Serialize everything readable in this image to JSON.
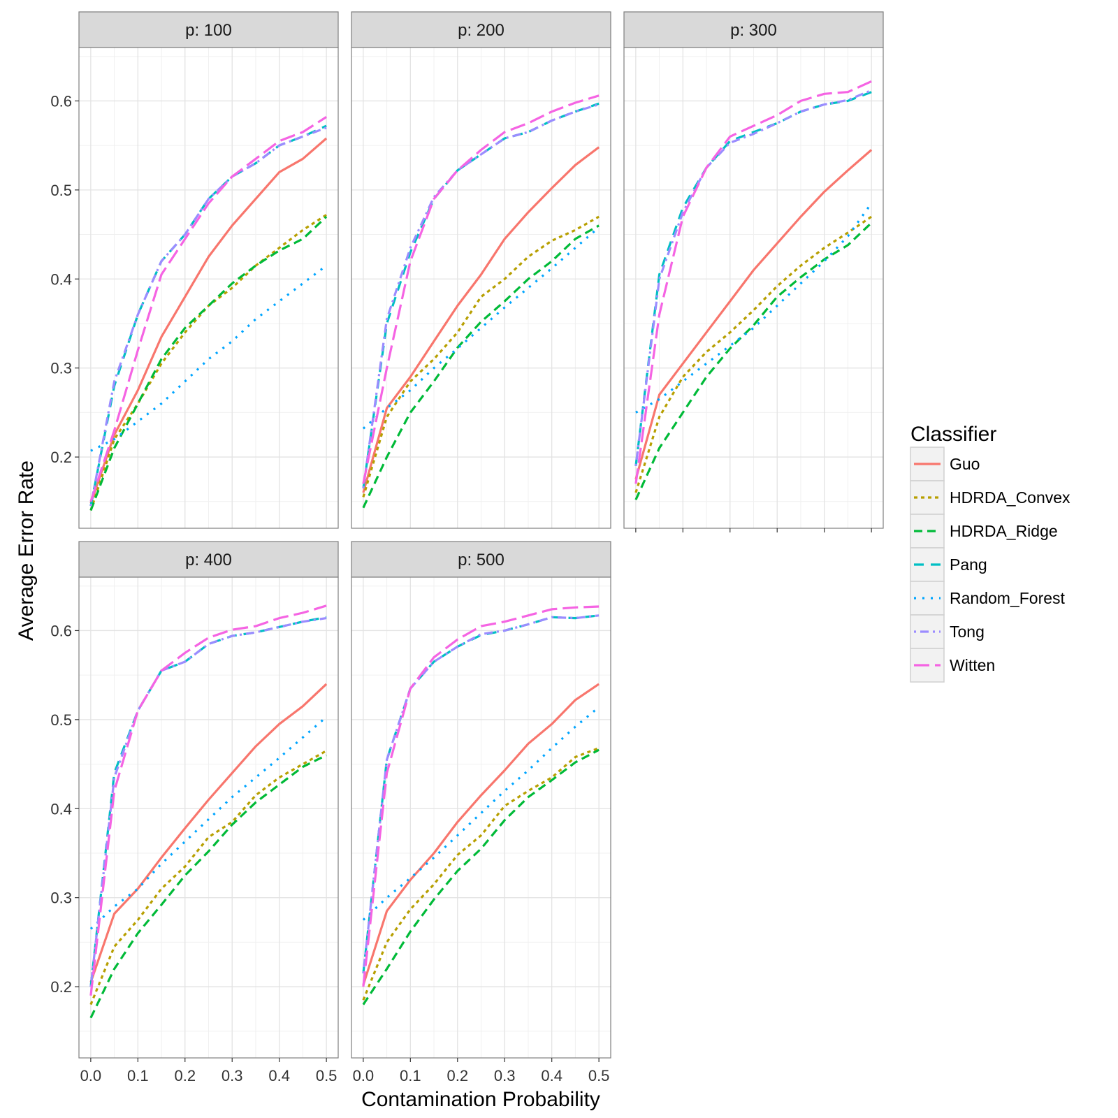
{
  "chart_data": {
    "type": "line",
    "xlabel": "Contamination Probability",
    "ylabel": "Average Error Rate",
    "xlim": [
      -0.025,
      0.525
    ],
    "ylim": [
      0.12,
      0.66
    ],
    "x_ticks": [
      "0.0",
      "0.1",
      "0.2",
      "0.3",
      "0.4",
      "0.5"
    ],
    "x_tick_values": [
      0,
      0.1,
      0.2,
      0.3,
      0.4,
      0.5
    ],
    "y_ticks": [
      "0.2",
      "0.3",
      "0.4",
      "0.5",
      "0.6"
    ],
    "y_tick_values": [
      0.2,
      0.3,
      0.4,
      0.5,
      0.6
    ],
    "grid": true,
    "legend": {
      "title": "Classifier",
      "position": "right",
      "entries": [
        {
          "name": "Guo",
          "color": "#F8766D",
          "dash": "solid"
        },
        {
          "name": "HDRDA_Convex",
          "color": "#B79F00",
          "dash": "dotted-short"
        },
        {
          "name": "HDRDA_Ridge",
          "color": "#00BA38",
          "dash": "dashed"
        },
        {
          "name": "Pang",
          "color": "#00BFC4",
          "dash": "dashed-long"
        },
        {
          "name": "Random_Forest",
          "color": "#00A5FF",
          "dash": "dotted"
        },
        {
          "name": "Tong",
          "color": "#9B8CFF",
          "dash": "dotdash"
        },
        {
          "name": "Witten",
          "color": "#F564E3",
          "dash": "longdash"
        }
      ]
    },
    "x": [
      0,
      0.05,
      0.1,
      0.15,
      0.2,
      0.25,
      0.3,
      0.35,
      0.4,
      0.45,
      0.5
    ],
    "panels": [
      {
        "title": "p: 100",
        "series": [
          {
            "name": "Guo",
            "values": [
              0.148,
              0.225,
              0.275,
              0.335,
              0.38,
              0.425,
              0.46,
              0.49,
              0.52,
              0.535,
              0.558
            ]
          },
          {
            "name": "HDRDA_Convex",
            "values": [
              0.14,
              0.22,
              0.26,
              0.305,
              0.34,
              0.37,
              0.39,
              0.415,
              0.435,
              0.455,
              0.472
            ]
          },
          {
            "name": "HDRDA_Ridge",
            "values": [
              0.14,
              0.21,
              0.26,
              0.31,
              0.345,
              0.37,
              0.395,
              0.415,
              0.432,
              0.445,
              0.47
            ]
          },
          {
            "name": "Pang",
            "values": [
              0.145,
              0.28,
              0.36,
              0.42,
              0.45,
              0.49,
              0.515,
              0.53,
              0.55,
              0.56,
              0.572
            ]
          },
          {
            "name": "Random_Forest",
            "values": [
              0.207,
              0.22,
              0.24,
              0.26,
              0.285,
              0.31,
              0.33,
              0.355,
              0.375,
              0.395,
              0.415
            ]
          },
          {
            "name": "Tong",
            "values": [
              0.145,
              0.285,
              0.36,
              0.42,
              0.45,
              0.49,
              0.515,
              0.53,
              0.55,
              0.56,
              0.57
            ]
          },
          {
            "name": "Witten",
            "values": [
              0.15,
              0.23,
              0.32,
              0.405,
              0.445,
              0.485,
              0.515,
              0.535,
              0.555,
              0.565,
              0.582
            ]
          }
        ]
      },
      {
        "title": "p: 200",
        "series": [
          {
            "name": "Guo",
            "values": [
              0.16,
              0.255,
              0.29,
              0.33,
              0.37,
              0.405,
              0.445,
              0.475,
              0.502,
              0.528,
              0.548
            ]
          },
          {
            "name": "HDRDA_Convex",
            "values": [
              0.155,
              0.245,
              0.285,
              0.31,
              0.34,
              0.38,
              0.4,
              0.425,
              0.443,
              0.455,
              0.47
            ]
          },
          {
            "name": "HDRDA_Ridge",
            "values": [
              0.143,
              0.2,
              0.25,
              0.285,
              0.323,
              0.352,
              0.375,
              0.4,
              0.42,
              0.445,
              0.46
            ]
          },
          {
            "name": "Pang",
            "values": [
              0.165,
              0.35,
              0.43,
              0.49,
              0.522,
              0.54,
              0.558,
              0.565,
              0.578,
              0.588,
              0.597
            ]
          },
          {
            "name": "Random_Forest",
            "values": [
              0.232,
              0.255,
              0.275,
              0.3,
              0.322,
              0.345,
              0.368,
              0.39,
              0.412,
              0.435,
              0.458
            ]
          },
          {
            "name": "Tong",
            "values": [
              0.165,
              0.355,
              0.435,
              0.492,
              0.522,
              0.54,
              0.558,
              0.565,
              0.578,
              0.588,
              0.596
            ]
          },
          {
            "name": "Witten",
            "values": [
              0.17,
              0.3,
              0.42,
              0.49,
              0.522,
              0.545,
              0.565,
              0.575,
              0.588,
              0.598,
              0.606
            ]
          }
        ]
      },
      {
        "title": "p: 300",
        "series": [
          {
            "name": "Guo",
            "values": [
              0.175,
              0.27,
              0.305,
              0.34,
              0.375,
              0.41,
              0.44,
              0.47,
              0.498,
              0.522,
              0.545
            ]
          },
          {
            "name": "HDRDA_Convex",
            "values": [
              0.16,
              0.245,
              0.29,
              0.318,
              0.34,
              0.365,
              0.392,
              0.415,
              0.435,
              0.452,
              0.47
            ]
          },
          {
            "name": "HDRDA_Ridge",
            "values": [
              0.152,
              0.21,
              0.25,
              0.29,
              0.322,
              0.348,
              0.38,
              0.402,
              0.422,
              0.438,
              0.463
            ]
          },
          {
            "name": "Pang",
            "values": [
              0.19,
              0.405,
              0.48,
              0.525,
              0.555,
              0.565,
              0.575,
              0.588,
              0.596,
              0.6,
              0.61
            ]
          },
          {
            "name": "Random_Forest",
            "values": [
              0.25,
              0.265,
              0.285,
              0.305,
              0.325,
              0.345,
              0.37,
              0.395,
              0.42,
              0.448,
              0.485
            ]
          },
          {
            "name": "Tong",
            "values": [
              0.19,
              0.4,
              0.475,
              0.525,
              0.553,
              0.563,
              0.575,
              0.588,
              0.596,
              0.601,
              0.612
            ]
          },
          {
            "name": "Witten",
            "values": [
              0.17,
              0.36,
              0.47,
              0.525,
              0.56,
              0.572,
              0.584,
              0.6,
              0.608,
              0.61,
              0.622
            ]
          }
        ]
      },
      {
        "title": "p: 400",
        "series": [
          {
            "name": "Guo",
            "values": [
              0.205,
              0.282,
              0.31,
              0.345,
              0.378,
              0.41,
              0.44,
              0.47,
              0.495,
              0.515,
              0.54
            ]
          },
          {
            "name": "HDRDA_Convex",
            "values": [
              0.18,
              0.245,
              0.275,
              0.31,
              0.335,
              0.368,
              0.385,
              0.415,
              0.435,
              0.45,
              0.465
            ]
          },
          {
            "name": "HDRDA_Ridge",
            "values": [
              0.165,
              0.22,
              0.26,
              0.292,
              0.325,
              0.352,
              0.382,
              0.407,
              0.427,
              0.447,
              0.46
            ]
          },
          {
            "name": "Pang",
            "values": [
              0.2,
              0.44,
              0.51,
              0.555,
              0.565,
              0.585,
              0.594,
              0.598,
              0.604,
              0.61,
              0.615
            ]
          },
          {
            "name": "Random_Forest",
            "values": [
              0.265,
              0.29,
              0.31,
              0.338,
              0.363,
              0.388,
              0.413,
              0.435,
              0.457,
              0.48,
              0.503
            ]
          },
          {
            "name": "Tong",
            "values": [
              0.2,
              0.435,
              0.51,
              0.555,
              0.565,
              0.585,
              0.594,
              0.598,
              0.604,
              0.61,
              0.614
            ]
          },
          {
            "name": "Witten",
            "values": [
              0.19,
              0.42,
              0.51,
              0.555,
              0.575,
              0.592,
              0.601,
              0.605,
              0.614,
              0.62,
              0.628
            ]
          }
        ]
      },
      {
        "title": "p: 500",
        "series": [
          {
            "name": "Guo",
            "values": [
              0.202,
              0.285,
              0.32,
              0.35,
              0.385,
              0.415,
              0.443,
              0.473,
              0.495,
              0.522,
              0.54
            ]
          },
          {
            "name": "HDRDA_Convex",
            "values": [
              0.185,
              0.25,
              0.287,
              0.315,
              0.348,
              0.37,
              0.403,
              0.42,
              0.435,
              0.458,
              0.468
            ]
          },
          {
            "name": "HDRDA_Ridge",
            "values": [
              0.18,
              0.22,
              0.262,
              0.298,
              0.33,
              0.355,
              0.387,
              0.413,
              0.432,
              0.452,
              0.466
            ]
          },
          {
            "name": "Pang",
            "values": [
              0.215,
              0.455,
              0.535,
              0.565,
              0.582,
              0.595,
              0.6,
              0.607,
              0.615,
              0.614,
              0.617
            ]
          },
          {
            "name": "Random_Forest",
            "values": [
              0.275,
              0.3,
              0.322,
              0.345,
              0.37,
              0.395,
              0.42,
              0.443,
              0.468,
              0.492,
              0.514
            ]
          },
          {
            "name": "Tong",
            "values": [
              0.215,
              0.455,
              0.535,
              0.565,
              0.582,
              0.596,
              0.6,
              0.607,
              0.615,
              0.614,
              0.617
            ]
          },
          {
            "name": "Witten",
            "values": [
              0.2,
              0.44,
              0.535,
              0.57,
              0.59,
              0.605,
              0.61,
              0.617,
              0.624,
              0.626,
              0.627
            ]
          }
        ]
      }
    ]
  }
}
